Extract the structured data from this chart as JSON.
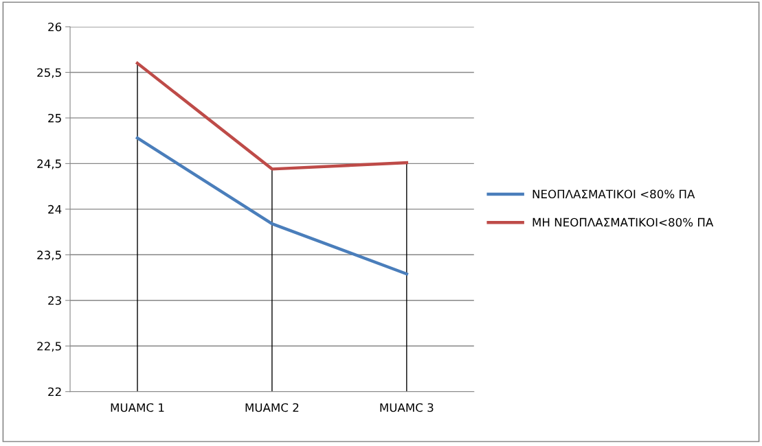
{
  "chart_data": {
    "type": "line",
    "categories": [
      "MUAMC 1",
      "MUAMC 2",
      "MUAMC 3"
    ],
    "series": [
      {
        "name": "ΝΕΟΠΛΑΣΜΑΤΙΚΟΙ <80% ΠΑ",
        "color": "#4a7ebb",
        "values": [
          24.78,
          23.84,
          23.29
        ]
      },
      {
        "name": "ΜΗ ΝΕΟΠΛΑΣΜΑΤΙΚΟΙ<80% ΠΑ",
        "color": "#be4b48",
        "values": [
          25.6,
          24.44,
          24.51
        ]
      }
    ],
    "ylim": [
      22,
      26
    ],
    "yticks": [
      22,
      {
        "value": 22.5,
        "label": "22,5"
      },
      23,
      {
        "value": 23.5,
        "label": "23,5"
      },
      24,
      {
        "value": 24.5,
        "label": "24,5"
      },
      25,
      {
        "value": 25.5,
        "label": "25,5"
      },
      26
    ],
    "ref_lines": [
      {
        "axis": "x",
        "value": "MUAMC 1",
        "color": "#000000"
      },
      {
        "axis": "x",
        "value": "MUAMC 2",
        "color": "#000000"
      },
      {
        "axis": "x",
        "value": "MUAMC 3",
        "color": "#000000"
      }
    ],
    "grid": "y",
    "legend": "right",
    "marker": "none",
    "line_style": "solid"
  }
}
